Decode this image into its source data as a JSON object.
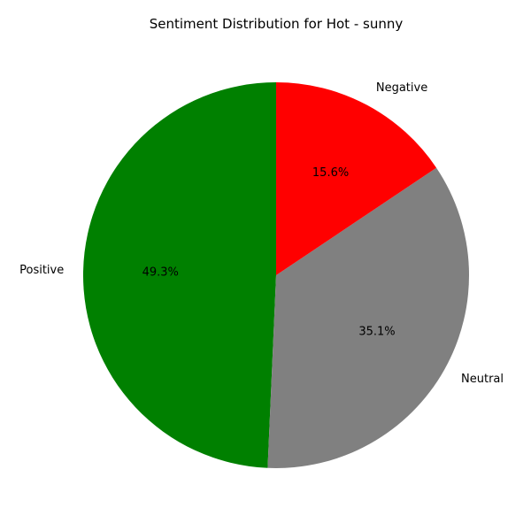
{
  "chart_data": {
    "type": "pie",
    "title": "Sentiment Distribution for Hot - sunny",
    "start_angle_deg": 90,
    "direction": "counterclockwise",
    "slices": [
      {
        "label": "Positive",
        "value": 49.3,
        "pct_text": "49.3%",
        "color": "#008000"
      },
      {
        "label": "Neutral",
        "value": 35.1,
        "pct_text": "35.1%",
        "color": "#808080"
      },
      {
        "label": "Negative",
        "value": 15.6,
        "pct_text": "15.6%",
        "color": "#ff0000"
      }
    ],
    "legend": false
  }
}
